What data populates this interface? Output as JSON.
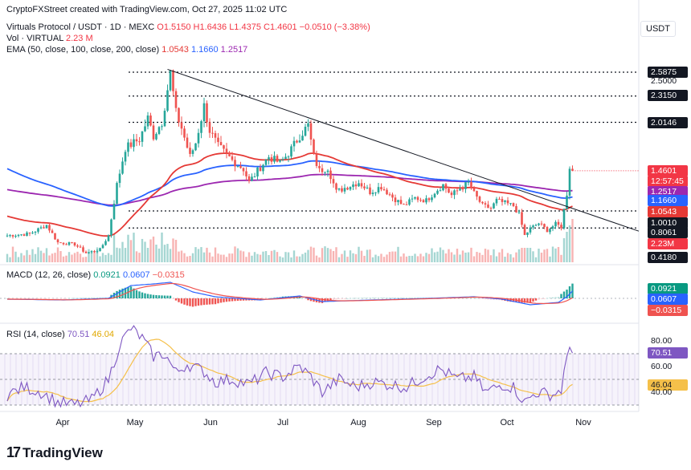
{
  "attribution": "CryptoFXStreet created with TradingView.com, Oct 27, 2025 11:02 UTC",
  "currency": "USDT",
  "header": {
    "symbol_line": "Virtuals Protocol / USDT · 1D · MEXC",
    "open": "O1.5150",
    "high": "H1.6436",
    "low": "L1.4375",
    "close": "C1.4601",
    "change": "−0.0510 (−3.38%)",
    "vol_label": "Vol · VIRTUAL",
    "vol_value": "2.23 M",
    "ema_label": "EMA (50, close, 100, close, 200, close)",
    "ema_values": [
      "1.0543",
      "1.1660",
      "1.2517"
    ]
  },
  "macd_header": {
    "label": "MACD (12, 26, close)",
    "values": [
      "0.0921",
      "0.0607",
      "−0.0315"
    ]
  },
  "rsi_header": {
    "label": "RSI (14, close)",
    "values": [
      "70.51",
      "46.04"
    ]
  },
  "colors": {
    "up": "#26a69a",
    "down": "#ef5350",
    "ema50": "#e53935",
    "ema100": "#2962ff",
    "ema200": "#9c27b0",
    "macd": "#2962ff",
    "signal": "#ef5350",
    "rsi": "#7e57c2",
    "rsi_ma": "#f5c04a",
    "trend": "#131722",
    "price": "#f23645"
  },
  "brand": "TradingView",
  "chart_data": [
    {
      "type": "candlestick",
      "title": "Virtuals Protocol / USDT · 1D · MEXC",
      "x_ticks": [
        "Apr",
        "May",
        "Jun",
        "Jul",
        "Aug",
        "Sep",
        "Oct",
        "Nov"
      ],
      "y_ticks": [
        "2.5000"
      ],
      "price_labels": [
        {
          "value": "2.5875",
          "kind": "level"
        },
        {
          "value": "2.3150",
          "kind": "level"
        },
        {
          "value": "2.0146",
          "kind": "level"
        },
        {
          "value": "1.4601",
          "kind": "price"
        },
        {
          "value": "12:57:45",
          "kind": "countdown"
        },
        {
          "value": "1.2517",
          "kind": "ema200"
        },
        {
          "value": "1.1660",
          "kind": "ema100"
        },
        {
          "value": "1.0543",
          "kind": "ema50"
        },
        {
          "value": "1.0010",
          "kind": "level"
        },
        {
          "value": "0.8061",
          "kind": "level"
        },
        {
          "value": "2.23M",
          "kind": "volume"
        },
        {
          "value": "0.4180",
          "kind": "level"
        }
      ],
      "horizontal_levels": [
        2.5875,
        2.315,
        2.0146,
        1.001,
        0.8061
      ],
      "trendline": {
        "from": {
          "date": "2025-05-27",
          "price": 2.62
        },
        "to": {
          "date": "2025-11-10",
          "price": 0.77
        }
      },
      "anchors": [
        {
          "i": 0,
          "p": 0.72
        },
        {
          "i": 8,
          "p": 0.74
        },
        {
          "i": 14,
          "p": 0.84
        },
        {
          "i": 18,
          "p": 0.64
        },
        {
          "i": 24,
          "p": 0.62
        },
        {
          "i": 28,
          "p": 0.52
        },
        {
          "i": 33,
          "p": 0.56
        },
        {
          "i": 36,
          "p": 0.72
        },
        {
          "i": 39,
          "p": 1.3
        },
        {
          "i": 42,
          "p": 1.72
        },
        {
          "i": 47,
          "p": 1.82
        },
        {
          "i": 50,
          "p": 2.06
        },
        {
          "i": 52,
          "p": 1.86
        },
        {
          "i": 55,
          "p": 2.02
        },
        {
          "i": 58,
          "p": 2.58
        },
        {
          "i": 60,
          "p": 2.12
        },
        {
          "i": 62,
          "p": 1.95
        },
        {
          "i": 65,
          "p": 1.62
        },
        {
          "i": 67,
          "p": 1.78
        },
        {
          "i": 70,
          "p": 2.2
        },
        {
          "i": 72,
          "p": 1.92
        },
        {
          "i": 75,
          "p": 1.74
        },
        {
          "i": 80,
          "p": 1.58
        },
        {
          "i": 84,
          "p": 1.48
        },
        {
          "i": 86,
          "p": 1.33
        },
        {
          "i": 90,
          "p": 1.5
        },
        {
          "i": 93,
          "p": 1.62
        },
        {
          "i": 97,
          "p": 1.55
        },
        {
          "i": 100,
          "p": 1.66
        },
        {
          "i": 104,
          "p": 1.86
        },
        {
          "i": 107,
          "p": 1.98
        },
        {
          "i": 109,
          "p": 1.62
        },
        {
          "i": 111,
          "p": 1.46
        },
        {
          "i": 114,
          "p": 1.5
        },
        {
          "i": 117,
          "p": 1.22
        },
        {
          "i": 121,
          "p": 1.28
        },
        {
          "i": 125,
          "p": 1.33
        },
        {
          "i": 129,
          "p": 1.22
        },
        {
          "i": 133,
          "p": 1.28
        },
        {
          "i": 137,
          "p": 1.16
        },
        {
          "i": 141,
          "p": 1.06
        },
        {
          "i": 145,
          "p": 1.15
        },
        {
          "i": 149,
          "p": 1.12
        },
        {
          "i": 152,
          "p": 1.22
        },
        {
          "i": 155,
          "p": 1.3
        },
        {
          "i": 158,
          "p": 1.18
        },
        {
          "i": 161,
          "p": 1.26
        },
        {
          "i": 164,
          "p": 1.32
        },
        {
          "i": 166,
          "p": 1.2
        },
        {
          "i": 169,
          "p": 1.06
        },
        {
          "i": 172,
          "p": 1.03
        },
        {
          "i": 174,
          "p": 1.12
        },
        {
          "i": 177,
          "p": 1.09
        },
        {
          "i": 180,
          "p": 1.06
        },
        {
          "i": 182,
          "p": 0.96
        },
        {
          "i": 184,
          "p": 0.72
        },
        {
          "i": 186,
          "p": 0.8
        },
        {
          "i": 189,
          "p": 0.86
        },
        {
          "i": 192,
          "p": 0.78
        },
        {
          "i": 195,
          "p": 0.85
        },
        {
          "i": 197,
          "p": 0.82
        },
        {
          "i": 199,
          "p": 1.2
        },
        {
          "i": 200,
          "p": 1.51
        },
        {
          "i": 201,
          "p": 1.46
        }
      ],
      "rsi_anchors": [
        {
          "i": 0,
          "v": 38
        },
        {
          "i": 6,
          "v": 44
        },
        {
          "i": 12,
          "v": 40
        },
        {
          "i": 18,
          "v": 32
        },
        {
          "i": 24,
          "v": 30
        },
        {
          "i": 30,
          "v": 34
        },
        {
          "i": 36,
          "v": 50
        },
        {
          "i": 40,
          "v": 77
        },
        {
          "i": 44,
          "v": 90
        },
        {
          "i": 48,
          "v": 82
        },
        {
          "i": 52,
          "v": 68
        },
        {
          "i": 56,
          "v": 70
        },
        {
          "i": 60,
          "v": 55
        },
        {
          "i": 64,
          "v": 62
        },
        {
          "i": 70,
          "v": 56
        },
        {
          "i": 74,
          "v": 48
        },
        {
          "i": 80,
          "v": 50
        },
        {
          "i": 86,
          "v": 46
        },
        {
          "i": 92,
          "v": 55
        },
        {
          "i": 98,
          "v": 52
        },
        {
          "i": 104,
          "v": 60
        },
        {
          "i": 108,
          "v": 52
        },
        {
          "i": 112,
          "v": 40
        },
        {
          "i": 118,
          "v": 50
        },
        {
          "i": 124,
          "v": 44
        },
        {
          "i": 130,
          "v": 48
        },
        {
          "i": 136,
          "v": 46
        },
        {
          "i": 142,
          "v": 44
        },
        {
          "i": 148,
          "v": 52
        },
        {
          "i": 154,
          "v": 58
        },
        {
          "i": 160,
          "v": 50
        },
        {
          "i": 166,
          "v": 52
        },
        {
          "i": 170,
          "v": 40
        },
        {
          "i": 176,
          "v": 46
        },
        {
          "i": 180,
          "v": 44
        },
        {
          "i": 184,
          "v": 32
        },
        {
          "i": 188,
          "v": 40
        },
        {
          "i": 194,
          "v": 38
        },
        {
          "i": 197,
          "v": 42
        },
        {
          "i": 199,
          "v": 68
        },
        {
          "i": 200,
          "v": 75
        },
        {
          "i": 201,
          "v": 70.51
        }
      ],
      "macd_anchors": [
        {
          "i": 0,
          "v": -0.01
        },
        {
          "i": 20,
          "v": -0.02
        },
        {
          "i": 36,
          "v": 0.0
        },
        {
          "i": 44,
          "v": 0.16
        },
        {
          "i": 52,
          "v": 0.18
        },
        {
          "i": 58,
          "v": 0.2
        },
        {
          "i": 66,
          "v": 0.08
        },
        {
          "i": 74,
          "v": 0.02
        },
        {
          "i": 90,
          "v": -0.02
        },
        {
          "i": 104,
          "v": 0.03
        },
        {
          "i": 112,
          "v": -0.04
        },
        {
          "i": 130,
          "v": -0.02
        },
        {
          "i": 150,
          "v": 0.0
        },
        {
          "i": 166,
          "v": 0.02
        },
        {
          "i": 176,
          "v": -0.01
        },
        {
          "i": 186,
          "v": -0.08
        },
        {
          "i": 196,
          "v": -0.05
        },
        {
          "i": 199,
          "v": 0.02
        },
        {
          "i": 201,
          "v": 0.0921
        }
      ]
    }
  ]
}
